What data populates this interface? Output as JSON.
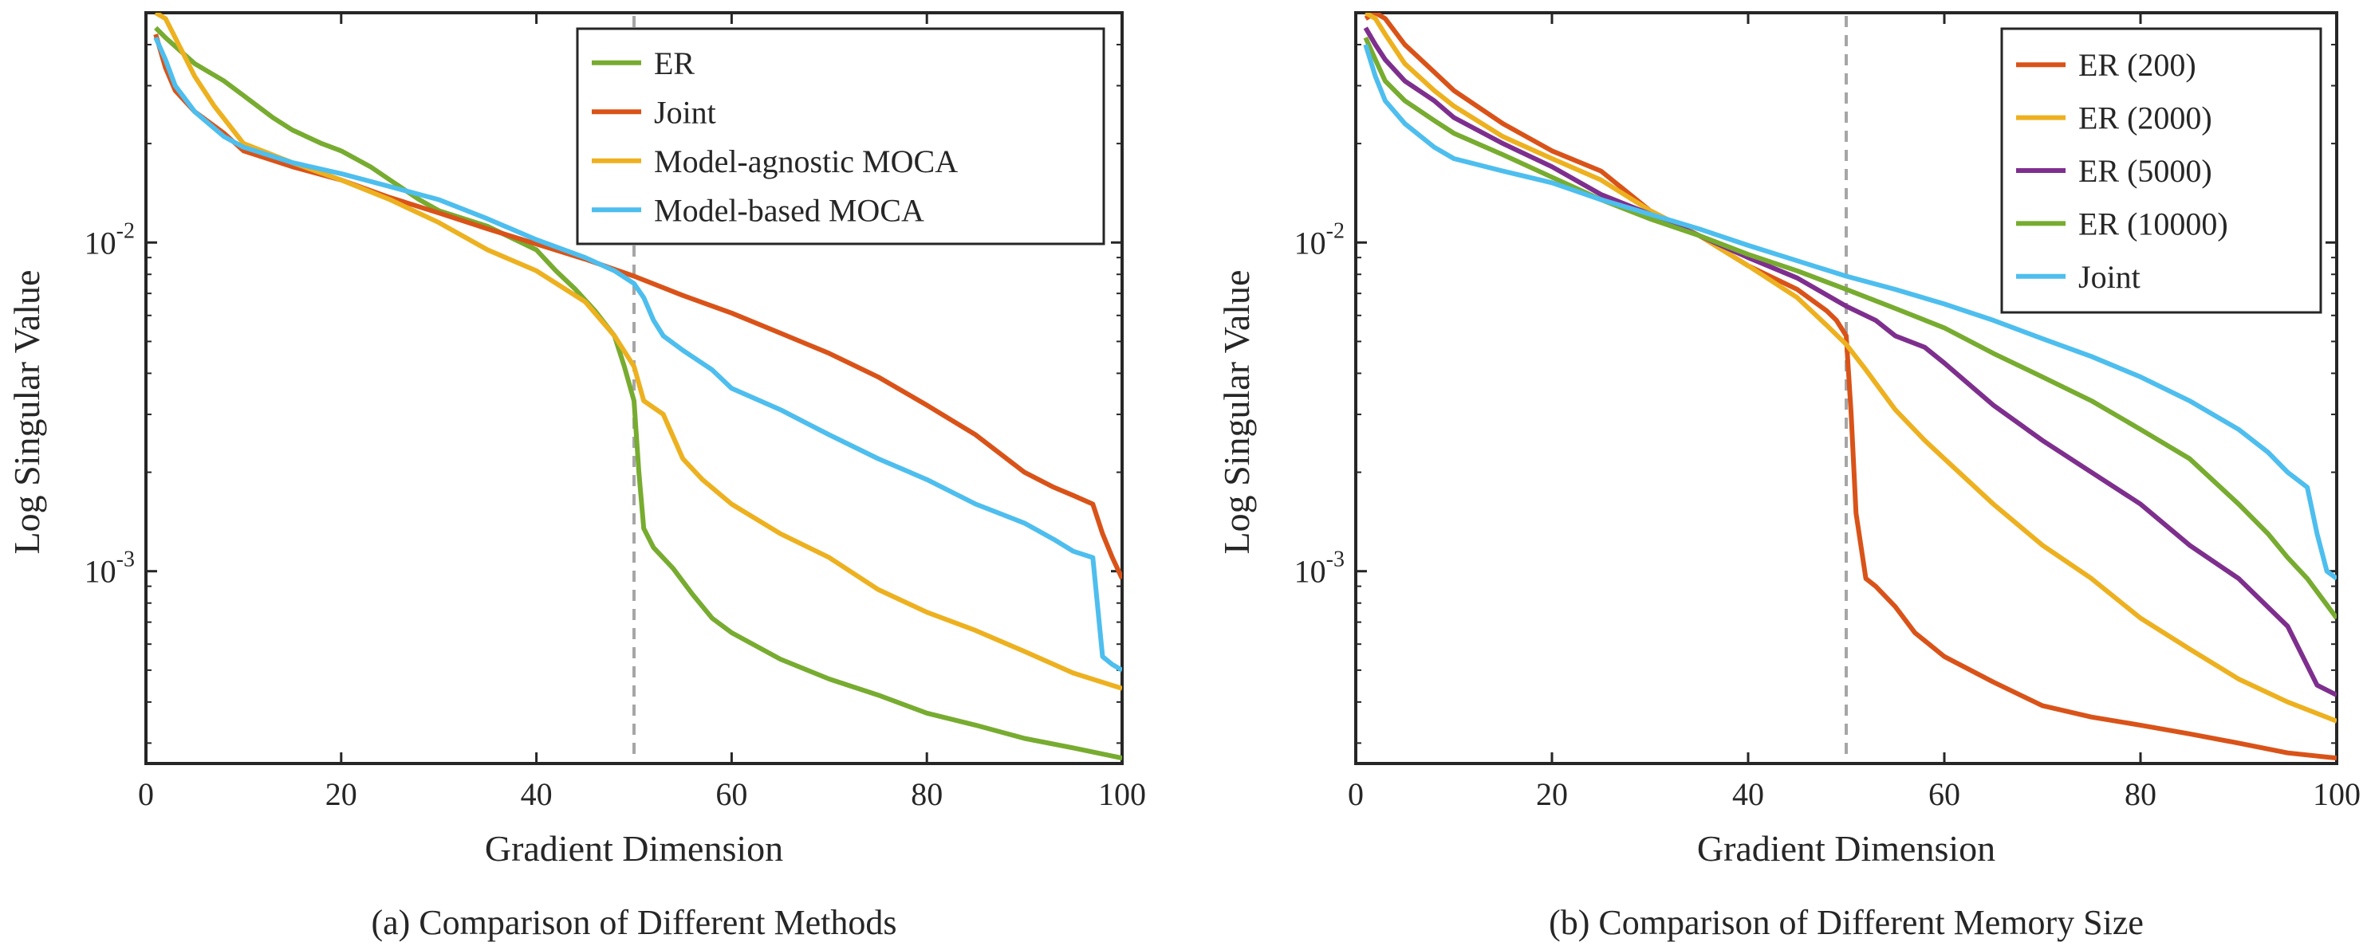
{
  "chart_data": [
    {
      "type": "line",
      "caption": "(a) Comparison of Different Methods",
      "xlabel": "Gradient Dimension",
      "ylabel": "Log Singular Value",
      "xlim": [
        0,
        100
      ],
      "ylim": [
        0.00026,
        0.05
      ],
      "yscale": "log",
      "xticks": [
        "0",
        "20",
        "40",
        "60",
        "80",
        "100"
      ],
      "yticks": [
        {
          "value": 0.01,
          "base": "10",
          "exp": "-2"
        },
        {
          "value": 0.001,
          "base": "10",
          "exp": "-3"
        }
      ],
      "vline": 50,
      "legend_position": "top-right",
      "series": [
        {
          "name": "ER",
          "color": "#77AC30",
          "x": [
            1,
            2,
            5,
            8,
            10,
            13,
            15,
            18,
            20,
            23,
            25,
            28,
            30,
            35,
            40,
            42,
            44,
            46,
            48,
            49,
            50,
            50.5,
            51,
            52,
            54,
            56,
            58,
            60,
            65,
            70,
            75,
            80,
            85,
            90,
            95,
            100
          ],
          "y": [
            0.045,
            0.042,
            0.035,
            0.031,
            0.028,
            0.024,
            0.022,
            0.02,
            0.019,
            0.017,
            0.0155,
            0.0135,
            0.0125,
            0.0112,
            0.0095,
            0.0082,
            0.0072,
            0.0062,
            0.0052,
            0.0042,
            0.0033,
            0.002,
            0.00135,
            0.00118,
            0.00102,
            0.00085,
            0.00072,
            0.00065,
            0.00054,
            0.00047,
            0.00042,
            0.00037,
            0.00034,
            0.00031,
            0.00029,
            0.00027
          ]
        },
        {
          "name": "Joint",
          "color": "#D95319",
          "x": [
            1,
            2,
            3,
            5,
            8,
            10,
            15,
            20,
            25,
            30,
            35,
            40,
            45,
            50,
            55,
            60,
            65,
            70,
            75,
            80,
            85,
            90,
            93,
            95,
            97,
            98,
            99,
            100
          ],
          "y": [
            0.043,
            0.034,
            0.029,
            0.025,
            0.0215,
            0.019,
            0.017,
            0.0155,
            0.0137,
            0.0123,
            0.011,
            0.0099,
            0.0089,
            0.0079,
            0.0069,
            0.0061,
            0.0053,
            0.0046,
            0.0039,
            0.0032,
            0.0026,
            0.002,
            0.0018,
            0.0017,
            0.0016,
            0.0013,
            0.0011,
            0.00095
          ]
        },
        {
          "name": "Model-agnostic MOCA",
          "color": "#EDB120",
          "x": [
            1,
            2,
            3,
            5,
            7,
            10,
            15,
            20,
            25,
            30,
            35,
            40,
            45,
            48,
            50,
            51,
            53,
            55,
            57,
            60,
            65,
            70,
            75,
            80,
            85,
            90,
            95,
            100
          ],
          "y": [
            0.05,
            0.048,
            0.042,
            0.032,
            0.026,
            0.02,
            0.0175,
            0.0155,
            0.0135,
            0.0115,
            0.0095,
            0.0082,
            0.0066,
            0.0052,
            0.0042,
            0.0033,
            0.003,
            0.0022,
            0.0019,
            0.0016,
            0.0013,
            0.0011,
            0.00088,
            0.00075,
            0.00066,
            0.00057,
            0.00049,
            0.00044
          ]
        },
        {
          "name": "Model-based MOCA",
          "color": "#4DBEEE",
          "x": [
            1,
            2,
            3,
            5,
            8,
            10,
            15,
            20,
            25,
            30,
            35,
            40,
            45,
            48,
            50,
            51,
            52,
            53,
            55,
            58,
            60,
            65,
            70,
            75,
            80,
            85,
            90,
            93,
            95,
            97,
            98,
            99,
            100
          ],
          "y": [
            0.042,
            0.036,
            0.03,
            0.025,
            0.021,
            0.0195,
            0.0175,
            0.0162,
            0.0148,
            0.0135,
            0.0118,
            0.0102,
            0.009,
            0.0082,
            0.0075,
            0.0068,
            0.0058,
            0.0052,
            0.0047,
            0.0041,
            0.0036,
            0.0031,
            0.0026,
            0.0022,
            0.0019,
            0.0016,
            0.0014,
            0.00125,
            0.00115,
            0.0011,
            0.00055,
            0.00052,
            0.0005
          ]
        }
      ]
    },
    {
      "type": "line",
      "caption": "(b) Comparison of Different Memory Size",
      "xlabel": "Gradient Dimension",
      "ylabel": "Log Singular Value",
      "xlim": [
        0,
        100
      ],
      "ylim": [
        0.00026,
        0.05
      ],
      "yscale": "log",
      "xticks": [
        "0",
        "20",
        "40",
        "60",
        "80",
        "100"
      ],
      "yticks": [
        {
          "value": 0.01,
          "base": "10",
          "exp": "-2"
        },
        {
          "value": 0.001,
          "base": "10",
          "exp": "-3"
        }
      ],
      "vline": 50,
      "legend_position": "top-right",
      "series": [
        {
          "name": "ER (200)",
          "color": "#D95319",
          "x": [
            1,
            2,
            3,
            5,
            8,
            10,
            15,
            20,
            25,
            30,
            35,
            40,
            45,
            48,
            49,
            50,
            50.5,
            51,
            52,
            53,
            55,
            57,
            60,
            65,
            70,
            75,
            80,
            85,
            90,
            95,
            100
          ],
          "y": [
            0.048,
            0.05,
            0.048,
            0.04,
            0.033,
            0.029,
            0.023,
            0.019,
            0.0165,
            0.0125,
            0.0105,
            0.0085,
            0.0072,
            0.0062,
            0.0058,
            0.0052,
            0.003,
            0.0015,
            0.00095,
            0.0009,
            0.00078,
            0.00065,
            0.00055,
            0.00046,
            0.00039,
            0.00036,
            0.00034,
            0.00032,
            0.0003,
            0.00028,
            0.00027
          ]
        },
        {
          "name": "ER (2000)",
          "color": "#EDB120",
          "x": [
            1,
            2,
            3,
            5,
            8,
            10,
            15,
            20,
            25,
            30,
            35,
            40,
            45,
            48,
            50,
            52,
            55,
            58,
            60,
            65,
            70,
            75,
            80,
            85,
            90,
            95,
            100
          ],
          "y": [
            0.05,
            0.048,
            0.043,
            0.035,
            0.029,
            0.026,
            0.021,
            0.018,
            0.0155,
            0.0125,
            0.0105,
            0.0085,
            0.0068,
            0.0056,
            0.0049,
            0.0041,
            0.0031,
            0.0025,
            0.0022,
            0.0016,
            0.0012,
            0.00095,
            0.00072,
            0.00058,
            0.00047,
            0.0004,
            0.00035
          ]
        },
        {
          "name": "ER (5000)",
          "color": "#7E2F8E",
          "x": [
            1,
            2,
            3,
            5,
            8,
            10,
            15,
            20,
            25,
            30,
            35,
            40,
            45,
            50,
            53,
            55,
            58,
            60,
            63,
            65,
            70,
            75,
            80,
            85,
            90,
            95,
            98,
            100
          ],
          "y": [
            0.045,
            0.04,
            0.036,
            0.031,
            0.027,
            0.024,
            0.02,
            0.017,
            0.014,
            0.0122,
            0.0105,
            0.009,
            0.0078,
            0.0064,
            0.0058,
            0.0052,
            0.0048,
            0.0043,
            0.0036,
            0.0032,
            0.0025,
            0.002,
            0.0016,
            0.0012,
            0.00095,
            0.00068,
            0.00045,
            0.00042
          ]
        },
        {
          "name": "ER (10000)",
          "color": "#77AC30",
          "x": [
            1,
            2,
            3,
            5,
            8,
            10,
            15,
            20,
            25,
            30,
            35,
            40,
            45,
            50,
            55,
            60,
            65,
            70,
            75,
            80,
            85,
            90,
            93,
            95,
            97,
            100
          ],
          "y": [
            0.042,
            0.036,
            0.031,
            0.027,
            0.0235,
            0.0215,
            0.0185,
            0.0158,
            0.0135,
            0.0118,
            0.0105,
            0.0092,
            0.0082,
            0.0072,
            0.0063,
            0.0055,
            0.0046,
            0.0039,
            0.0033,
            0.0027,
            0.0022,
            0.0016,
            0.0013,
            0.0011,
            0.00095,
            0.00072
          ]
        },
        {
          "name": "Joint",
          "color": "#4DBEEE",
          "x": [
            1,
            2,
            3,
            5,
            8,
            10,
            15,
            20,
            25,
            30,
            35,
            40,
            45,
            50,
            55,
            60,
            65,
            70,
            75,
            80,
            85,
            90,
            93,
            95,
            97,
            98,
            99,
            100
          ],
          "y": [
            0.04,
            0.032,
            0.027,
            0.023,
            0.0195,
            0.018,
            0.0165,
            0.0152,
            0.0135,
            0.0122,
            0.011,
            0.0098,
            0.0088,
            0.0079,
            0.0072,
            0.0065,
            0.0058,
            0.0051,
            0.0045,
            0.0039,
            0.0033,
            0.0027,
            0.0023,
            0.002,
            0.0018,
            0.0013,
            0.001,
            0.00095
          ]
        }
      ]
    }
  ]
}
